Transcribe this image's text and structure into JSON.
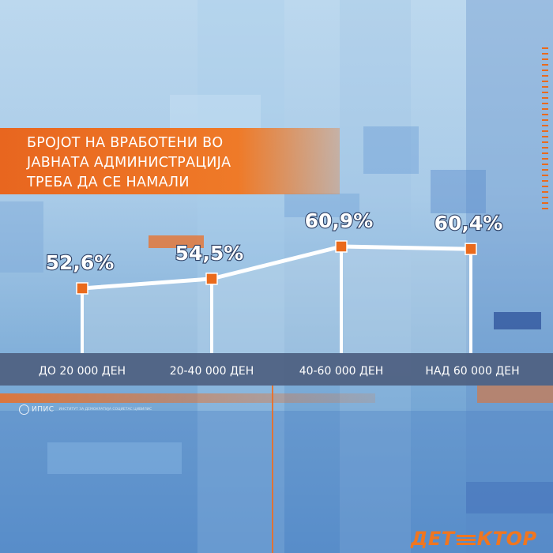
{
  "title_lines": [
    "БРОЈОТ НА ВРАБОТЕНИ ВО",
    "ЈАВНАТА АДМИНИСТРАЦИЈА",
    "ТРЕБА ДА СЕ НАМАЛИ"
  ],
  "chart_data": {
    "type": "line",
    "title": "БРОЈОТ НА ВРАБОТЕНИ ВО ЈАВНАТА АДМИНИСТРАЦИЈА ТРЕБА ДА СЕ НАМАЛИ",
    "categories": [
      "ДО 20 000 ДЕН",
      "20-40 000 ДЕН",
      "40-60 000 ДЕН",
      "НАД 60 000 ДЕН"
    ],
    "values": [
      52.6,
      54.5,
      60.9,
      60.4
    ],
    "labels": [
      "52,6%",
      "54,5%",
      "60,9%",
      "60,4%"
    ],
    "unit": "%",
    "ylim": [
      48,
      62
    ],
    "grid": false,
    "marker_color": "#ea6a1c",
    "line_color": "#ffffff"
  },
  "source": {
    "name": "ИПИС",
    "subtitle": "ИНСТИТУТ ЗА ДЕМОКРАТИЈА СОЦИЕТАС ЦИВИЛИС"
  },
  "brand": {
    "left": "ДЕТ",
    "right": "КТОР",
    "color": "#f07620"
  }
}
